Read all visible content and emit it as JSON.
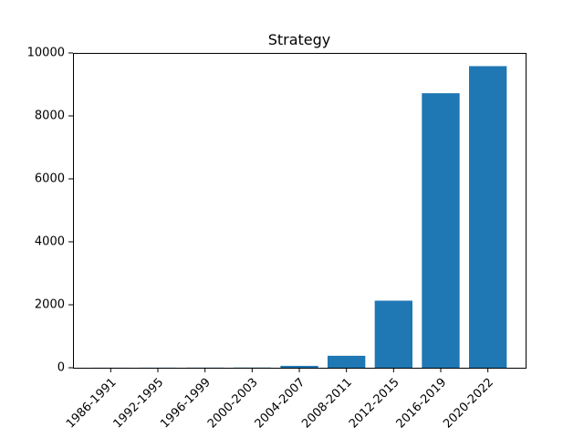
{
  "chart_data": {
    "type": "bar",
    "title": "Strategy",
    "xlabel": "",
    "ylabel": "",
    "categories": [
      "1986-1991",
      "1992-1995",
      "1996-1999",
      "2000-2003",
      "2004-2007",
      "2008-2011",
      "2012-2015",
      "2016-2019",
      "2020-2022"
    ],
    "values": [
      2,
      3,
      4,
      6,
      60,
      380,
      2130,
      8720,
      9580
    ],
    "ylim": [
      0,
      10000
    ],
    "yticks": [
      0,
      2000,
      4000,
      6000,
      8000,
      10000
    ],
    "ytick_labels": [
      "0",
      "2000",
      "4000",
      "6000",
      "8000",
      "10000"
    ],
    "bar_color": "#1f77b4",
    "grid": false,
    "legend": "none"
  }
}
